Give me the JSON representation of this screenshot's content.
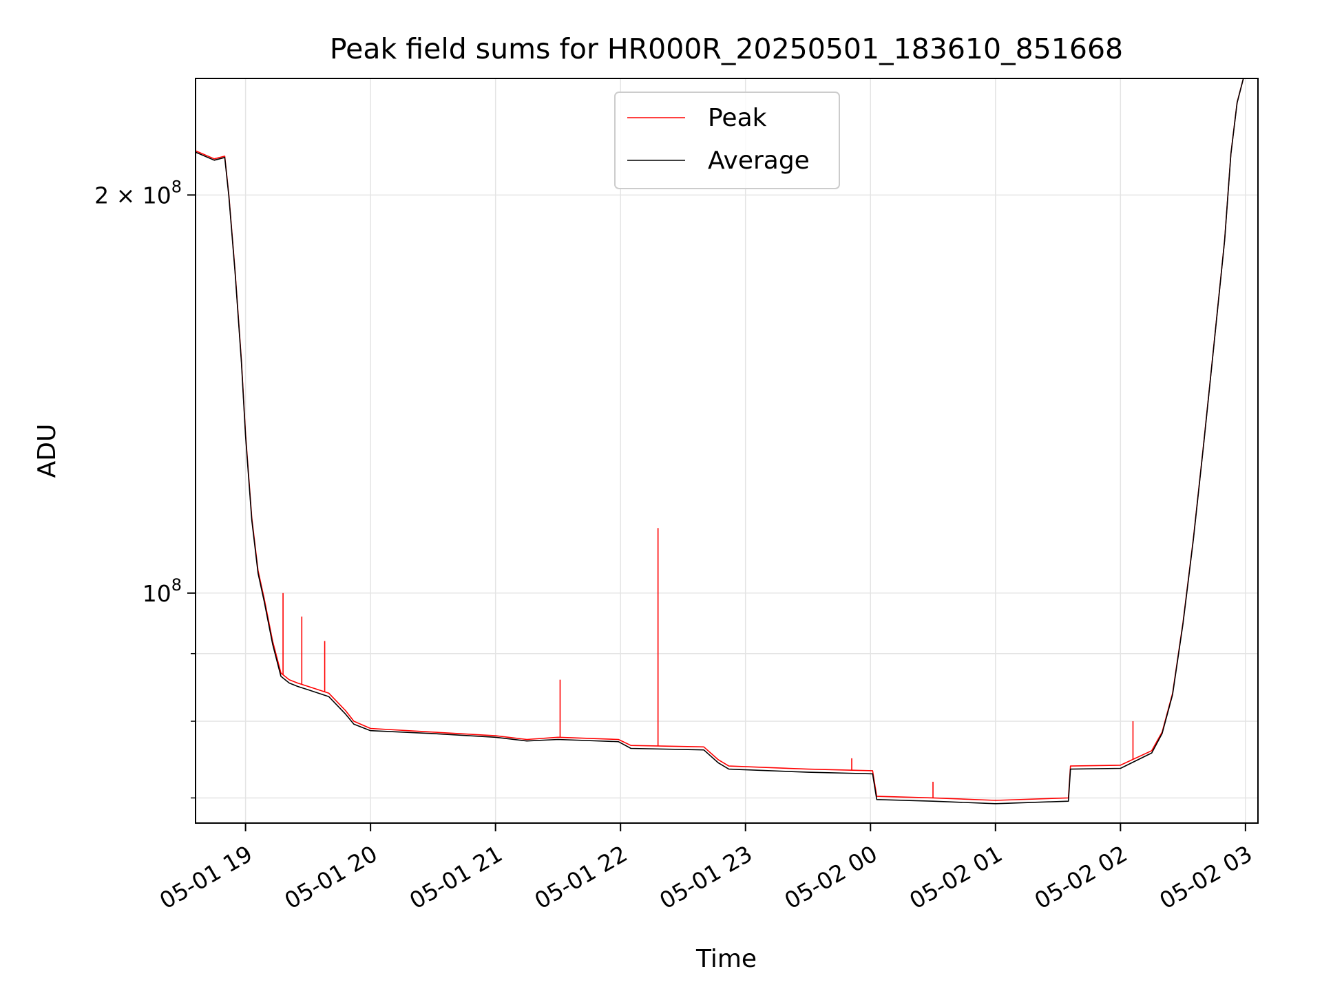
{
  "chart_data": {
    "type": "line",
    "title": "Peak field sums for HR000R_20250501_183610_851668",
    "xlabel": "Time",
    "ylabel": "ADU",
    "xlim": [
      "2025-05-01 18:36",
      "2025-05-02 03:06"
    ],
    "ylim": [
      67000000,
      245000000
    ],
    "yscale": "log",
    "grid": true,
    "legend_position": "top-center",
    "x_ticks": [
      {
        "value": "2025-05-01 19:00",
        "label": "05-01 19"
      },
      {
        "value": "2025-05-01 20:00",
        "label": "05-01 20"
      },
      {
        "value": "2025-05-01 21:00",
        "label": "05-01 21"
      },
      {
        "value": "2025-05-01 22:00",
        "label": "05-01 22"
      },
      {
        "value": "2025-05-01 23:00",
        "label": "05-01 23"
      },
      {
        "value": "2025-05-02 00:00",
        "label": "05-02 00"
      },
      {
        "value": "2025-05-02 01:00",
        "label": "05-02 01"
      },
      {
        "value": "2025-05-02 02:00",
        "label": "05-02 02"
      },
      {
        "value": "2025-05-02 03:00",
        "label": "05-02 03"
      }
    ],
    "y_ticks": [
      {
        "value": 200000000,
        "base": "2 × 10",
        "exp": "8"
      },
      {
        "value": 100000000,
        "base": "10",
        "exp": "8"
      }
    ],
    "y_minor_ticks": [
      90000000,
      80000000,
      70000000
    ],
    "series": [
      {
        "name": "Peak",
        "color": "#ff0000",
        "x": [
          "2025-05-01 18:36",
          "2025-05-01 18:45",
          "2025-05-01 18:50",
          "2025-05-01 18:52",
          "2025-05-01 18:55",
          "2025-05-01 18:58",
          "2025-05-01 19:00",
          "2025-05-01 19:03",
          "2025-05-01 19:06",
          "2025-05-01 19:09",
          "2025-05-01 19:13",
          "2025-05-01 19:17",
          "2025-05-01 19:21",
          "2025-05-01 19:25",
          "2025-05-01 19:30",
          "2025-05-01 19:40",
          "2025-05-01 19:48",
          "2025-05-01 19:52",
          "2025-05-01 20:00",
          "2025-05-01 20:30",
          "2025-05-01 21:00",
          "2025-05-01 21:15",
          "2025-05-01 21:30",
          "2025-05-01 21:59",
          "2025-05-01 22:05",
          "2025-05-01 22:40",
          "2025-05-01 22:47",
          "2025-05-01 22:52",
          "2025-05-01 23:30",
          "2025-05-02 00:01",
          "2025-05-02 00:03",
          "2025-05-02 00:30",
          "2025-05-02 01:00",
          "2025-05-02 01:35",
          "2025-05-02 01:36",
          "2025-05-02 02:00",
          "2025-05-02 02:15",
          "2025-05-02 02:20",
          "2025-05-02 02:25",
          "2025-05-02 02:30",
          "2025-05-02 02:35",
          "2025-05-02 02:40",
          "2025-05-02 02:45",
          "2025-05-02 02:50",
          "2025-05-02 02:53",
          "2025-05-02 02:56",
          "2025-05-02 02:59"
        ],
        "values": [
          216000000,
          213000000,
          214000000,
          200000000,
          175000000,
          150000000,
          132000000,
          114000000,
          104000000,
          99000000,
          92000000,
          87000000,
          86000000,
          85500000,
          85000000,
          84000000,
          81500000,
          80000000,
          79000000,
          78500000,
          78000000,
          77500000,
          77800000,
          77500000,
          76700000,
          76500000,
          74800000,
          74000000,
          73600000,
          73400000,
          70200000,
          70000000,
          69700000,
          70000000,
          74000000,
          74100000,
          76000000,
          78500000,
          84000000,
          95000000,
          110000000,
          130000000,
          155000000,
          185000000,
          215000000,
          235000000,
          245000000
        ],
        "spikes": [
          {
            "x": "2025-05-01 19:18",
            "value": 100000000
          },
          {
            "x": "2025-05-01 19:27",
            "value": 96000000
          },
          {
            "x": "2025-05-01 19:38",
            "value": 92000000
          },
          {
            "x": "2025-05-01 21:31",
            "value": 86000000
          },
          {
            "x": "2025-05-01 22:18",
            "value": 112000000
          },
          {
            "x": "2025-05-01 23:51",
            "value": 75000000
          },
          {
            "x": "2025-05-02 00:30",
            "value": 72000000
          },
          {
            "x": "2025-05-02 02:06",
            "value": 80000000
          }
        ]
      },
      {
        "name": "Average",
        "color": "#000000",
        "x": [
          "2025-05-01 18:36",
          "2025-05-01 18:45",
          "2025-05-01 18:50",
          "2025-05-01 18:52",
          "2025-05-01 18:55",
          "2025-05-01 18:58",
          "2025-05-01 19:00",
          "2025-05-01 19:03",
          "2025-05-01 19:06",
          "2025-05-01 19:09",
          "2025-05-01 19:13",
          "2025-05-01 19:17",
          "2025-05-01 19:21",
          "2025-05-01 19:25",
          "2025-05-01 19:30",
          "2025-05-01 19:40",
          "2025-05-01 19:48",
          "2025-05-01 19:52",
          "2025-05-01 20:00",
          "2025-05-01 20:30",
          "2025-05-01 21:00",
          "2025-05-01 21:15",
          "2025-05-01 21:30",
          "2025-05-01 21:59",
          "2025-05-01 22:05",
          "2025-05-01 22:40",
          "2025-05-01 22:47",
          "2025-05-01 22:52",
          "2025-05-01 23:30",
          "2025-05-02 00:01",
          "2025-05-02 00:03",
          "2025-05-02 00:30",
          "2025-05-02 01:00",
          "2025-05-02 01:35",
          "2025-05-02 01:36",
          "2025-05-02 02:00",
          "2025-05-02 02:15",
          "2025-05-02 02:20",
          "2025-05-02 02:25",
          "2025-05-02 02:30",
          "2025-05-02 02:35",
          "2025-05-02 02:40",
          "2025-05-02 02:45",
          "2025-05-02 02:50",
          "2025-05-02 02:53",
          "2025-05-02 02:56",
          "2025-05-02 02:59"
        ],
        "values": [
          215500000,
          212500000,
          213500000,
          199500000,
          174500000,
          149500000,
          131500000,
          113500000,
          103500000,
          98500000,
          91500000,
          86500000,
          85500000,
          85000000,
          84500000,
          83500000,
          81000000,
          79600000,
          78700000,
          78300000,
          77800000,
          77300000,
          77500000,
          77200000,
          76300000,
          76100000,
          74400000,
          73600000,
          73200000,
          73000000,
          69800000,
          69600000,
          69300000,
          69600000,
          73600000,
          73700000,
          75700000,
          78300000,
          83800000,
          94800000,
          109800000,
          129800000,
          154800000,
          184800000,
          214800000,
          234800000,
          245000000
        ]
      }
    ]
  }
}
